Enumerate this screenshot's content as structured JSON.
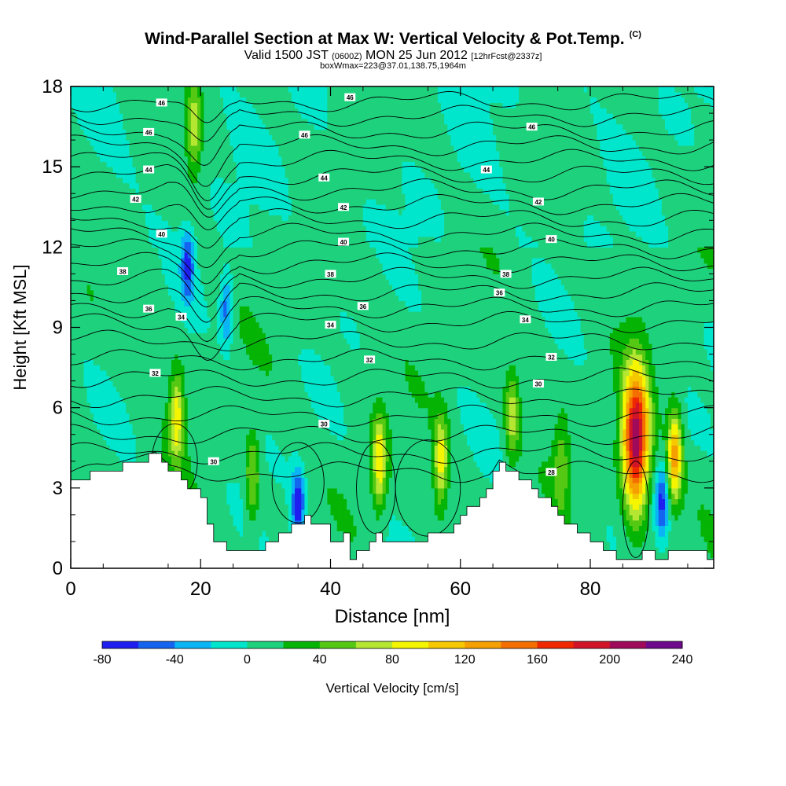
{
  "header": {
    "title": "Wind-Parallel Section at Max W: Vertical Velocity & Pot.Temp.",
    "title_mark": "(C)",
    "valid_a": "Valid 1500 JST ",
    "valid_utc": "(0600Z)",
    "valid_b": " MON 25 Jun 2012 ",
    "forecast": "[12hrFcst@2337z]",
    "boxwmax": "boxWmax=223@37.01,138.75,1964m"
  },
  "chart_data": {
    "type": "heatmap",
    "xlabel": "Distance [nm]",
    "ylabel": "Height [Kft MSL]",
    "xlim": [
      0,
      99
    ],
    "ylim": [
      0,
      18
    ],
    "xticks": [
      0,
      20,
      40,
      60,
      80
    ],
    "yticks": [
      0,
      3,
      6,
      9,
      12,
      15,
      18
    ],
    "colorbar": {
      "label": "Vertical Velocity [cm/s]",
      "ticks": [
        -80,
        -40,
        0,
        40,
        80,
        120,
        160,
        200,
        240
      ],
      "levels": [
        -80,
        -60,
        -40,
        -20,
        0,
        20,
        40,
        60,
        80,
        100,
        120,
        140,
        160,
        180,
        200,
        220,
        240
      ],
      "colors": [
        "#1e1ef0",
        "#1464f0",
        "#0ab4f5",
        "#00e6cc",
        "#1ed27d",
        "#05b405",
        "#55c814",
        "#b4e632",
        "#f5f500",
        "#f5c800",
        "#f5a000",
        "#f56e00",
        "#f02800",
        "#d21428",
        "#a00a5a",
        "#6e0a8c"
      ]
    },
    "terrain_kft": [
      [
        0,
        3.3
      ],
      [
        13,
        4.2
      ],
      [
        20,
        2.6
      ],
      [
        22,
        1.0
      ],
      [
        25,
        0.7
      ],
      [
        29,
        0.7
      ],
      [
        32,
        1.3
      ],
      [
        36,
        1.9
      ],
      [
        39,
        1.6
      ],
      [
        40,
        0.9
      ],
      [
        42,
        1.3
      ],
      [
        43,
        0.3
      ],
      [
        47,
        1.3
      ],
      [
        49,
        1.0
      ],
      [
        56,
        1.2
      ],
      [
        59,
        1.6
      ],
      [
        63,
        2.7
      ],
      [
        66,
        3.9
      ],
      [
        70,
        3.3
      ],
      [
        74,
        2.2
      ],
      [
        78,
        1.3
      ],
      [
        82,
        0.8
      ],
      [
        84,
        0.3
      ],
      [
        87,
        0.3
      ],
      [
        89,
        0.7
      ],
      [
        90,
        0.3
      ],
      [
        94,
        0.8
      ],
      [
        99,
        0.3
      ]
    ],
    "updrafts": [
      {
        "x": 16.3,
        "z": 5.7,
        "peak_cms": 95
      },
      {
        "x": 28.0,
        "z": 3.4,
        "peak_cms": 70
      },
      {
        "x": 47.5,
        "z": 4.0,
        "peak_cms": 100
      },
      {
        "x": 57.0,
        "z": 4.0,
        "peak_cms": 95
      },
      {
        "x": 68.0,
        "z": 5.7,
        "peak_cms": 75
      },
      {
        "x": 75.5,
        "z": 3.8,
        "peak_cms": 55
      },
      {
        "x": 87.0,
        "z": 4.8,
        "peak_cms": 223
      },
      {
        "x": 93.0,
        "z": 4.2,
        "peak_cms": 130
      },
      {
        "x": 19.0,
        "z": 16.5,
        "peak_cms": 75
      }
    ],
    "downdrafts": [
      {
        "x": 35.0,
        "z": 2.4,
        "min_cms": -75
      },
      {
        "x": 18.0,
        "z": 11.3,
        "min_cms": -60
      },
      {
        "x": 24.0,
        "z": 9.7,
        "min_cms": -50
      },
      {
        "x": 91.0,
        "z": 2.5,
        "min_cms": -60
      }
    ],
    "theta_labels": [
      {
        "text": "46",
        "x": 14,
        "z": 17.4
      },
      {
        "text": "46",
        "x": 43,
        "z": 17.6
      },
      {
        "text": "46",
        "x": 12,
        "z": 16.3
      },
      {
        "text": "46",
        "x": 36,
        "z": 16.2
      },
      {
        "text": "46",
        "x": 71,
        "z": 16.5
      },
      {
        "text": "44",
        "x": 12,
        "z": 14.9
      },
      {
        "text": "44",
        "x": 39,
        "z": 14.6
      },
      {
        "text": "44",
        "x": 64,
        "z": 14.9
      },
      {
        "text": "42",
        "x": 10,
        "z": 13.8
      },
      {
        "text": "42",
        "x": 42,
        "z": 13.5
      },
      {
        "text": "42",
        "x": 72,
        "z": 13.7
      },
      {
        "text": "40",
        "x": 14,
        "z": 12.5
      },
      {
        "text": "40",
        "x": 42,
        "z": 12.2
      },
      {
        "text": "40",
        "x": 74,
        "z": 12.3
      },
      {
        "text": "38",
        "x": 8,
        "z": 11.1
      },
      {
        "text": "38",
        "x": 40,
        "z": 11.0
      },
      {
        "text": "38",
        "x": 67,
        "z": 11.0
      },
      {
        "text": "36",
        "x": 45,
        "z": 9.8
      },
      {
        "text": "36",
        "x": 66,
        "z": 10.3
      },
      {
        "text": "36",
        "x": 12,
        "z": 9.7
      },
      {
        "text": "34",
        "x": 17,
        "z": 9.4
      },
      {
        "text": "34",
        "x": 40,
        "z": 9.1
      },
      {
        "text": "34",
        "x": 70,
        "z": 9.3
      },
      {
        "text": "32",
        "x": 46,
        "z": 7.8
      },
      {
        "text": "32",
        "x": 74,
        "z": 7.9
      },
      {
        "text": "32",
        "x": 13,
        "z": 7.3
      },
      {
        "text": "30",
        "x": 72,
        "z": 6.9
      },
      {
        "text": "30",
        "x": 39,
        "z": 5.4
      },
      {
        "text": "30",
        "x": 22,
        "z": 4.0
      },
      {
        "text": "28",
        "x": 74,
        "z": 3.6
      }
    ]
  }
}
